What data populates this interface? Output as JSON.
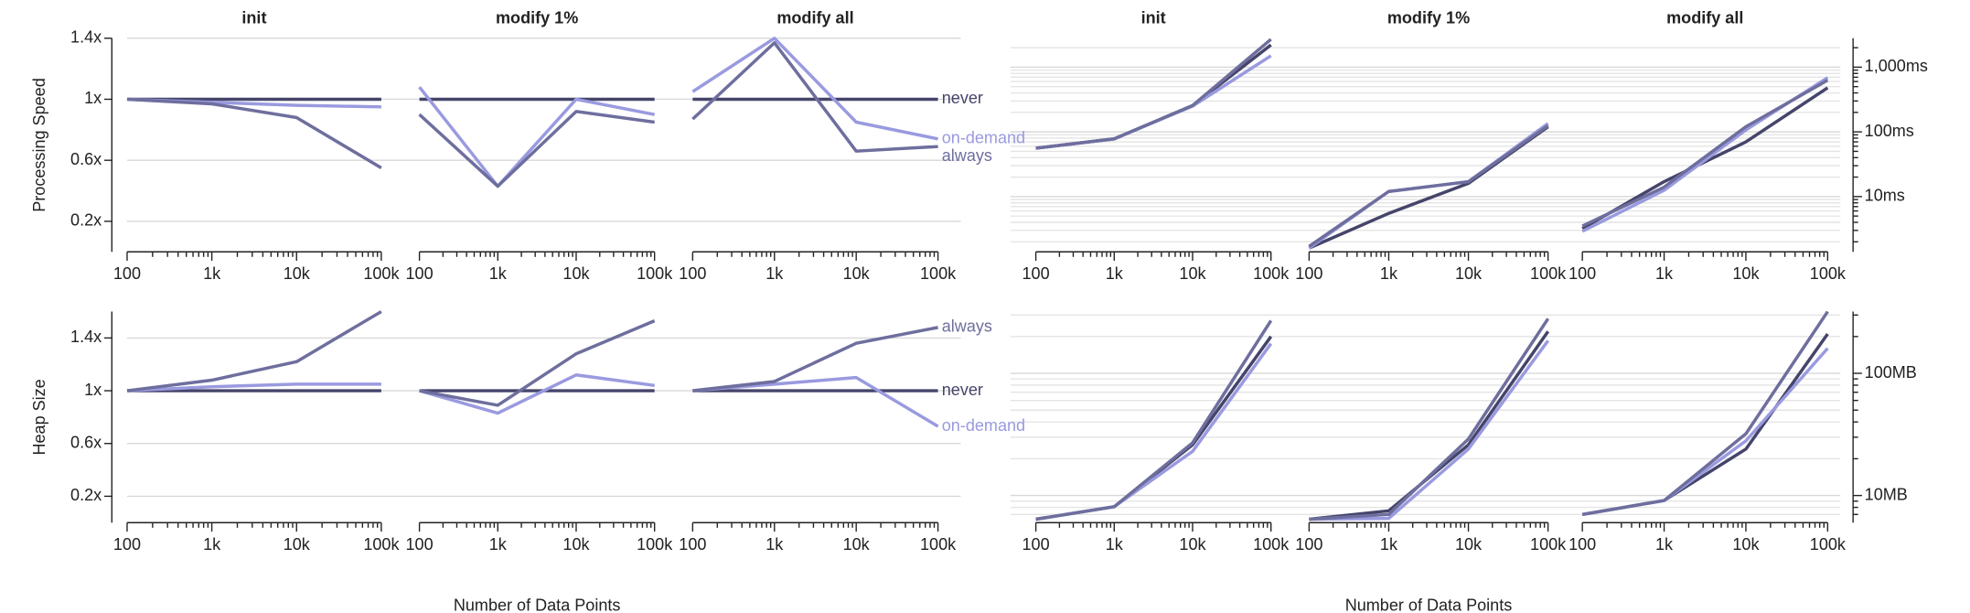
{
  "chart_data": [
    {
      "type": "line",
      "title": "init",
      "ylabel": "Processing Speed",
      "x": [
        100,
        1000,
        10000,
        100000
      ],
      "xlim": [
        100,
        100000
      ],
      "xscale": "log",
      "xticks": [
        100,
        {
          "value": 1000,
          "label": "1k"
        },
        {
          "value": 10000,
          "label": "10k"
        },
        {
          "value": 100000,
          "label": "100k"
        }
      ],
      "ylim": [
        0,
        1.4
      ],
      "yticks": [
        {
          "value": 0.2,
          "label": "0.2x"
        },
        {
          "value": 0.6,
          "label": "0.6x"
        },
        {
          "value": 1,
          "label": "1x"
        },
        {
          "value": 1.4,
          "label": "1.4x"
        }
      ],
      "grid": true,
      "series": [
        {
          "name": "never",
          "color": "#45456b",
          "values": [
            1,
            1,
            1,
            1
          ]
        },
        {
          "name": "on-demand",
          "color": "#9a9ae0",
          "values": [
            1.0,
            0.98,
            0.96,
            0.95
          ]
        },
        {
          "name": "always",
          "color": "#6e6e9e",
          "values": [
            1.0,
            0.97,
            0.88,
            0.55
          ]
        }
      ]
    },
    {
      "type": "line",
      "title": "modify 1%",
      "x": [
        100,
        1000,
        10000,
        100000
      ],
      "xlim": [
        100,
        100000
      ],
      "xscale": "log",
      "xticks": [
        100,
        {
          "value": 1000,
          "label": "1k"
        },
        {
          "value": 10000,
          "label": "10k"
        },
        {
          "value": 100000,
          "label": "100k"
        }
      ],
      "ylim": [
        0,
        1.4
      ],
      "grid": true,
      "series": [
        {
          "name": "never",
          "color": "#45456b",
          "values": [
            1,
            1,
            1,
            1
          ]
        },
        {
          "name": "on-demand",
          "color": "#9a9ae0",
          "values": [
            1.08,
            0.43,
            1.0,
            0.9
          ]
        },
        {
          "name": "always",
          "color": "#6e6e9e",
          "values": [
            0.9,
            0.43,
            0.92,
            0.85
          ]
        }
      ]
    },
    {
      "type": "line",
      "title": "modify all",
      "x": [
        100,
        1000,
        10000,
        100000
      ],
      "xlim": [
        100,
        100000
      ],
      "xscale": "log",
      "xticks": [
        100,
        {
          "value": 1000,
          "label": "1k"
        },
        {
          "value": 10000,
          "label": "10k"
        },
        {
          "value": 100000,
          "label": "100k"
        }
      ],
      "ylim": [
        0,
        1.4
      ],
      "grid": true,
      "series": [
        {
          "name": "never",
          "color": "#45456b",
          "values": [
            1,
            1,
            1,
            1
          ]
        },
        {
          "name": "on-demand",
          "color": "#9a9ae0",
          "values": [
            1.05,
            1.4,
            0.85,
            0.74
          ]
        },
        {
          "name": "always",
          "color": "#6e6e9e",
          "values": [
            0.87,
            1.37,
            0.66,
            0.69
          ]
        }
      ]
    },
    {
      "type": "line",
      "title": "init",
      "x": [
        100,
        1000,
        10000,
        100000
      ],
      "xlim": [
        100,
        100000
      ],
      "xscale": "log",
      "xticks": [
        100,
        {
          "value": 1000,
          "label": "1k"
        },
        {
          "value": 10000,
          "label": "10k"
        },
        {
          "value": 100000,
          "label": "100k"
        }
      ],
      "ylim": [
        1.4,
        2800
      ],
      "yscale": "log",
      "grid": true,
      "series": [
        {
          "name": "never",
          "color": "#45456b",
          "values": [
            56,
            78,
            255,
            2200
          ]
        },
        {
          "name": "on-demand",
          "color": "#9a9ae0",
          "values": [
            56,
            78,
            250,
            1500
          ]
        },
        {
          "name": "always",
          "color": "#6e6e9e",
          "values": [
            56,
            78,
            255,
            2700
          ]
        }
      ]
    },
    {
      "type": "line",
      "title": "modify 1%",
      "x": [
        100,
        1000,
        10000,
        100000
      ],
      "xlim": [
        100,
        100000
      ],
      "xscale": "log",
      "xticks": [
        100,
        {
          "value": 1000,
          "label": "1k"
        },
        {
          "value": 10000,
          "label": "10k"
        },
        {
          "value": 100000,
          "label": "100k"
        }
      ],
      "ylim": [
        1.4,
        2800
      ],
      "yscale": "log",
      "grid": true,
      "series": [
        {
          "name": "never",
          "color": "#45456b",
          "values": [
            1.6,
            5.5,
            16,
            120
          ]
        },
        {
          "name": "on-demand",
          "color": "#9a9ae0",
          "values": [
            1.6,
            12,
            17,
            135
          ]
        },
        {
          "name": "always",
          "color": "#6e6e9e",
          "values": [
            1.7,
            12,
            17,
            125
          ]
        }
      ]
    },
    {
      "type": "line",
      "title": "modify all",
      "x": [
        100,
        1000,
        10000,
        100000
      ],
      "xlim": [
        100,
        100000
      ],
      "xscale": "log",
      "xticks": [
        100,
        {
          "value": 1000,
          "label": "1k"
        },
        {
          "value": 10000,
          "label": "10k"
        },
        {
          "value": 100000,
          "label": "100k"
        }
      ],
      "ylim": [
        1.4,
        2800
      ],
      "yscale": "log",
      "yticks": [
        {
          "value": 10,
          "label": "10ms"
        },
        {
          "value": 100,
          "label": "100ms"
        },
        {
          "value": 1000,
          "label": "1,000ms"
        }
      ],
      "grid": true,
      "series": [
        {
          "name": "never",
          "color": "#45456b",
          "values": [
            3.2,
            17,
            70,
            480
          ]
        },
        {
          "name": "on-demand",
          "color": "#9a9ae0",
          "values": [
            2.9,
            12.5,
            107,
            690
          ]
        },
        {
          "name": "always",
          "color": "#6e6e9e",
          "values": [
            3.5,
            14,
            120,
            630
          ]
        }
      ]
    },
    {
      "type": "line",
      "ylabel": "Heap Size",
      "x": [
        100,
        1000,
        10000,
        100000
      ],
      "xlim": [
        100,
        100000
      ],
      "xscale": "log",
      "xticks": [
        100,
        {
          "value": 1000,
          "label": "1k"
        },
        {
          "value": 10000,
          "label": "10k"
        },
        {
          "value": 100000,
          "label": "100k"
        }
      ],
      "ylim": [
        0,
        1.6
      ],
      "yticks": [
        {
          "value": 0.2,
          "label": "0.2x"
        },
        {
          "value": 0.6,
          "label": "0.6x"
        },
        {
          "value": 1,
          "label": "1x"
        },
        {
          "value": 1.4,
          "label": "1.4x"
        }
      ],
      "grid": true,
      "series": [
        {
          "name": "never",
          "color": "#45456b",
          "values": [
            1,
            1,
            1,
            1
          ]
        },
        {
          "name": "on-demand",
          "color": "#9a9ae0",
          "values": [
            1.0,
            1.03,
            1.05,
            1.05
          ]
        },
        {
          "name": "always",
          "color": "#6e6e9e",
          "values": [
            1.0,
            1.08,
            1.22,
            1.6
          ]
        }
      ]
    },
    {
      "type": "line",
      "xlabel": "Number of Data Points",
      "x": [
        100,
        1000,
        10000,
        100000
      ],
      "xlim": [
        100,
        100000
      ],
      "xscale": "log",
      "xticks": [
        100,
        {
          "value": 1000,
          "label": "1k"
        },
        {
          "value": 10000,
          "label": "10k"
        },
        {
          "value": 100000,
          "label": "100k"
        }
      ],
      "ylim": [
        0,
        1.6
      ],
      "grid": true,
      "series": [
        {
          "name": "never",
          "color": "#45456b",
          "values": [
            1,
            1,
            1,
            1
          ]
        },
        {
          "name": "on-demand",
          "color": "#9a9ae0",
          "values": [
            1.0,
            0.83,
            1.12,
            1.04
          ]
        },
        {
          "name": "always",
          "color": "#6e6e9e",
          "values": [
            1.0,
            0.89,
            1.28,
            1.53
          ]
        }
      ]
    },
    {
      "type": "line",
      "x": [
        100,
        1000,
        10000,
        100000
      ],
      "xlim": [
        100,
        100000
      ],
      "xscale": "log",
      "xticks": [
        100,
        {
          "value": 1000,
          "label": "1k"
        },
        {
          "value": 10000,
          "label": "10k"
        },
        {
          "value": 100000,
          "label": "100k"
        }
      ],
      "ylim": [
        0,
        1.6
      ],
      "grid": true,
      "series": [
        {
          "name": "never",
          "color": "#45456b",
          "values": [
            1,
            1,
            1,
            1
          ]
        },
        {
          "name": "on-demand",
          "color": "#9a9ae0",
          "values": [
            1.0,
            1.05,
            1.1,
            0.73
          ]
        },
        {
          "name": "always",
          "color": "#6e6e9e",
          "values": [
            1.0,
            1.07,
            1.36,
            1.48
          ]
        }
      ]
    },
    {
      "type": "line",
      "x": [
        100,
        1000,
        10000,
        100000
      ],
      "xlim": [
        100,
        100000
      ],
      "xscale": "log",
      "xticks": [
        100,
        {
          "value": 1000,
          "label": "1k"
        },
        {
          "value": 10000,
          "label": "10k"
        },
        {
          "value": 100000,
          "label": "100k"
        }
      ],
      "ylim": [
        6,
        320
      ],
      "yscale": "log",
      "grid": true,
      "series": [
        {
          "name": "never",
          "color": "#45456b",
          "values": [
            6.4,
            8.1,
            26,
            200
          ]
        },
        {
          "name": "on-demand",
          "color": "#9a9ae0",
          "values": [
            6.4,
            8.1,
            23,
            175
          ]
        },
        {
          "name": "always",
          "color": "#6e6e9e",
          "values": [
            6.4,
            8.1,
            27,
            270
          ]
        }
      ]
    },
    {
      "type": "line",
      "xlabel": "Number of Data Points",
      "x": [
        100,
        1000,
        10000,
        100000
      ],
      "xlim": [
        100,
        100000
      ],
      "xscale": "log",
      "xticks": [
        100,
        {
          "value": 1000,
          "label": "1k"
        },
        {
          "value": 10000,
          "label": "10k"
        },
        {
          "value": 100000,
          "label": "100k"
        }
      ],
      "ylim": [
        6,
        320
      ],
      "yscale": "log",
      "grid": true,
      "series": [
        {
          "name": "never",
          "color": "#45456b",
          "values": [
            6.4,
            7.5,
            26,
            220
          ]
        },
        {
          "name": "on-demand",
          "color": "#9a9ae0",
          "values": [
            6.4,
            6.5,
            24,
            185
          ]
        },
        {
          "name": "always",
          "color": "#6e6e9e",
          "values": [
            6.4,
            7.0,
            29,
            280
          ]
        }
      ]
    },
    {
      "type": "line",
      "x": [
        100,
        1000,
        10000,
        100000
      ],
      "xlim": [
        100,
        100000
      ],
      "xscale": "log",
      "xticks": [
        100,
        {
          "value": 1000,
          "label": "1k"
        },
        {
          "value": 10000,
          "label": "10k"
        },
        {
          "value": 100000,
          "label": "100k"
        }
      ],
      "ylim": [
        6,
        320
      ],
      "yscale": "log",
      "yticks": [
        {
          "value": 10,
          "label": "10MB"
        },
        {
          "value": 100,
          "label": "100MB"
        }
      ],
      "grid": true,
      "series": [
        {
          "name": "never",
          "color": "#45456b",
          "values": [
            7.0,
            9.1,
            24,
            210
          ]
        },
        {
          "name": "on-demand",
          "color": "#9a9ae0",
          "values": [
            7.0,
            9.1,
            28,
            160
          ]
        },
        {
          "name": "always",
          "color": "#6e6e9e",
          "values": [
            7.0,
            9.1,
            32,
            320
          ]
        }
      ]
    }
  ]
}
